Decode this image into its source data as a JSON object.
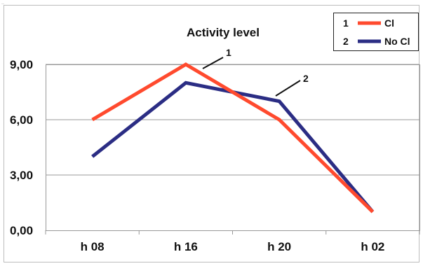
{
  "corner_mark": "..",
  "chart_data": {
    "type": "line",
    "title": "Activity level",
    "categories": [
      "h 08",
      "h 16",
      "h 20",
      "h 02"
    ],
    "ylim": [
      0,
      9
    ],
    "y_ticks": [
      "0,00",
      "3,00",
      "6,00",
      "9,00"
    ],
    "grid": "horizontal",
    "legend_position": "top-right",
    "series": [
      {
        "name": "Cl",
        "key": "1",
        "color": "#ff4a2e",
        "values": [
          6,
          9,
          6,
          1
        ]
      },
      {
        "name": "No Cl",
        "key": "2",
        "color": "#2b2d84",
        "values": [
          4,
          8,
          7,
          1
        ]
      }
    ],
    "annotations": [
      "1",
      "2"
    ]
  }
}
